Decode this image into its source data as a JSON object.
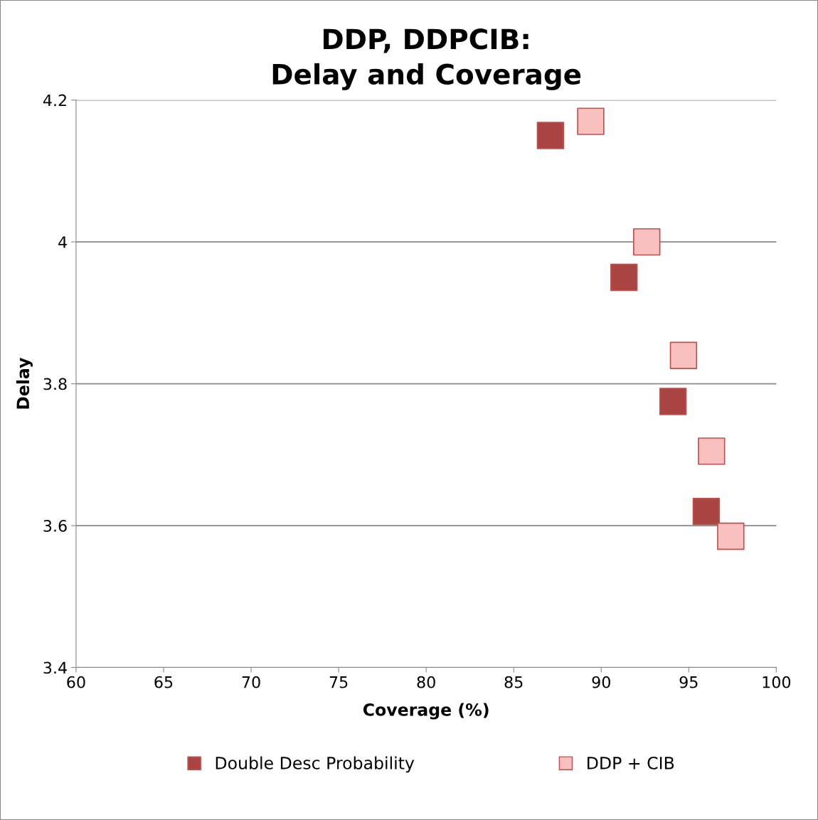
{
  "chart_data": {
    "type": "scatter",
    "title": "DDP, DDPCIB:\nDelay and Coverage",
    "xlabel": "Coverage (%)",
    "ylabel": "Delay",
    "series": [
      {
        "name": "Double Desc Probability",
        "color": "#a94442",
        "x": [
          87.1,
          91.3,
          94.1,
          96.0
        ],
        "values": [
          4.15,
          3.95,
          3.775,
          3.62
        ]
      },
      {
        "name": "DDP + CIB",
        "color": "#f9c0c0",
        "x": [
          89.4,
          92.6,
          94.7,
          96.3,
          97.4
        ],
        "values": [
          4.17,
          4.0,
          3.84,
          3.705,
          3.585
        ]
      }
    ],
    "xlim": [
      60,
      100
    ],
    "xticks": [
      60,
      65,
      70,
      75,
      80,
      85,
      90,
      95,
      100
    ],
    "ylim": [
      3.4,
      4.2
    ],
    "yticks": [
      3.4,
      3.6,
      3.8,
      4,
      4.2
    ],
    "grid": "y",
    "legend": "bottom",
    "marker": "square"
  }
}
